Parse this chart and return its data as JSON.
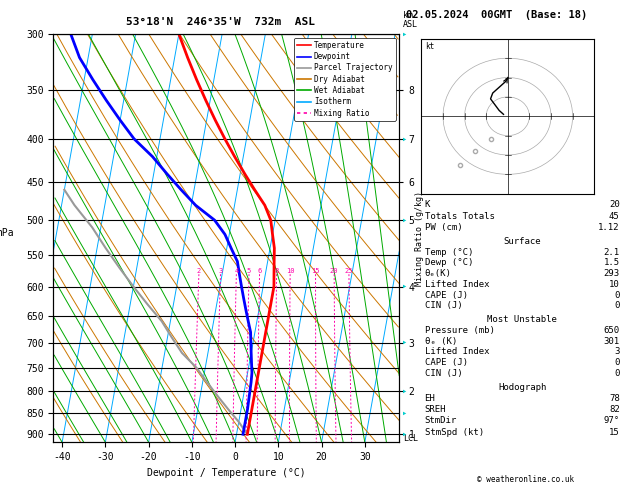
{
  "title_left": "53°18'N  246°35'W  732m  ASL",
  "title_right": "02.05.2024  00GMT  (Base: 18)",
  "xlabel": "Dewpoint / Temperature (°C)",
  "ylabel_left": "hPa",
  "xmin": -42,
  "xmax": 38,
  "pmin": 300,
  "pmax": 920,
  "p_ticks": [
    300,
    350,
    400,
    450,
    500,
    550,
    600,
    650,
    700,
    750,
    800,
    850,
    900
  ],
  "x_ticks": [
    -40,
    -30,
    -20,
    -10,
    0,
    10,
    20,
    30
  ],
  "km_labels": [
    "8",
    "7",
    "6",
    "5",
    "4",
    "3",
    "2",
    "1"
  ],
  "km_pressures": [
    350,
    400,
    450,
    500,
    600,
    700,
    800,
    900
  ],
  "lcl_pressure": 910,
  "skew_factor": 17.0,
  "temp_profile_p": [
    300,
    320,
    340,
    360,
    380,
    400,
    420,
    440,
    460,
    480,
    500,
    520,
    540,
    560,
    580,
    600,
    620,
    640,
    660,
    680,
    700,
    720,
    740,
    760,
    780,
    800,
    820,
    840,
    860,
    880,
    900
  ],
  "temp_profile_t": [
    -30,
    -27,
    -24,
    -21,
    -18,
    -15,
    -12,
    -9,
    -6,
    -3,
    -1,
    0,
    1,
    1.5,
    2,
    2.5,
    2.5,
    2.5,
    2.5,
    2.5,
    2.5,
    2.5,
    2.5,
    2.5,
    2.5,
    2.5,
    2.5,
    2.5,
    2.5,
    2.5,
    2.5
  ],
  "dewp_profile_p": [
    300,
    320,
    340,
    360,
    380,
    400,
    420,
    440,
    460,
    480,
    500,
    520,
    540,
    560,
    580,
    600,
    620,
    640,
    660,
    680,
    700,
    720,
    740,
    760,
    780,
    800,
    820,
    840,
    860,
    880,
    900
  ],
  "dewp_profile_t": [
    -55,
    -52,
    -48,
    -44,
    -40,
    -36,
    -31,
    -27,
    -23,
    -19,
    -14,
    -11,
    -9,
    -7,
    -6,
    -5,
    -4,
    -3,
    -2,
    -1,
    -0.5,
    0,
    0.5,
    1,
    1.2,
    1.3,
    1.4,
    1.5,
    1.5,
    1.5,
    1.5
  ],
  "parcel_p": [
    900,
    870,
    840,
    810,
    780,
    750,
    720,
    690,
    660,
    630,
    600,
    570,
    540,
    510,
    480,
    460
  ],
  "parcel_t": [
    2.5,
    0,
    -3,
    -6,
    -9,
    -12,
    -16,
    -19,
    -22,
    -26,
    -30,
    -34,
    -38,
    -42,
    -47,
    -50
  ],
  "isotherm_color": "#00aaff",
  "dry_adiabat_color": "#cc7700",
  "wet_adiabat_color": "#00aa00",
  "mixing_ratio_color": "#ff00aa",
  "temp_color": "#ff0000",
  "dewp_color": "#0000ff",
  "parcel_color": "#999999",
  "legend_items": [
    "Temperature",
    "Dewpoint",
    "Parcel Trajectory",
    "Dry Adiabat",
    "Wet Adiabat",
    "Isotherm",
    "Mixing Ratio"
  ],
  "legend_colors": [
    "#ff0000",
    "#0000ff",
    "#999999",
    "#cc7700",
    "#00aa00",
    "#00aaff",
    "#ff00aa"
  ],
  "legend_styles": [
    "solid",
    "solid",
    "solid",
    "solid",
    "solid",
    "solid",
    "dotted"
  ],
  "mixing_ratio_values": [
    2,
    3,
    4,
    5,
    6,
    8,
    10,
    15,
    20,
    25
  ],
  "stats": {
    "K": 20,
    "Totals_Totals": 45,
    "PW_cm": 1.12,
    "Surface_Temp": 2.1,
    "Surface_Dewp": 1.5,
    "Surface_ThetaE": 293,
    "Lifted_Index": 10,
    "CAPE": 0,
    "CIN": 0,
    "MU_Pressure": 650,
    "MU_ThetaE": 301,
    "MU_Lifted_Index": 3,
    "MU_CAPE": 0,
    "MU_CIN": 0,
    "EH": 78,
    "SREH": 82,
    "StmDir": 97,
    "StmSpd": 15
  },
  "copyright": "© weatheronline.co.uk"
}
